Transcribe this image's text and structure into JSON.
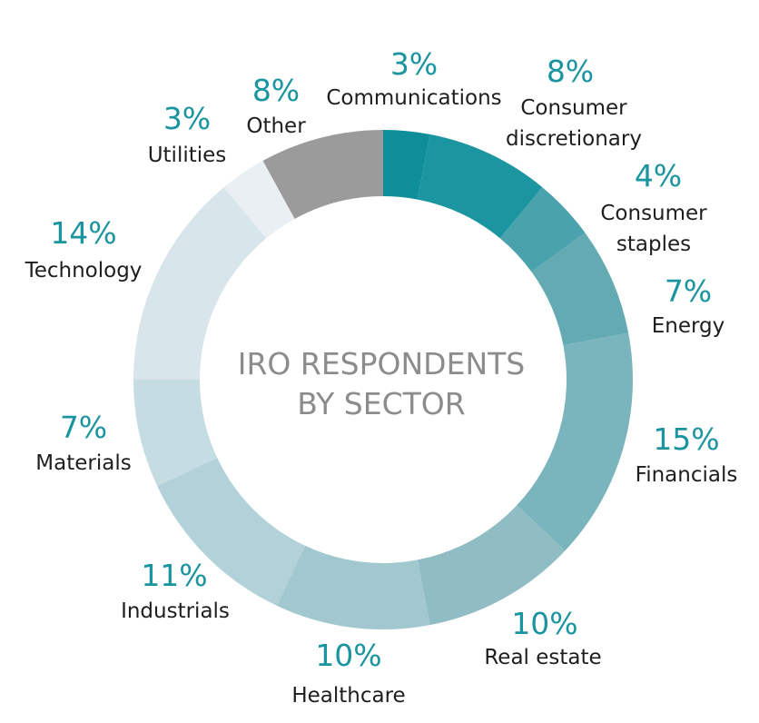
{
  "chart_data": {
    "type": "pie",
    "subtype": "donut",
    "title_lines": [
      "IRO RESPONDENTS",
      "BY SECTOR"
    ],
    "slices": [
      {
        "name": "Communications",
        "name_lines": [
          "Communications"
        ],
        "value": 3,
        "value_label": "3%",
        "color": "#0e8e99"
      },
      {
        "name": "Consumer discretionary",
        "name_lines": [
          "Consumer",
          "discretionary"
        ],
        "value": 8,
        "value_label": "8%",
        "color": "#1b96a1"
      },
      {
        "name": "Consumer staples",
        "name_lines": [
          "Consumer",
          "staples"
        ],
        "value": 4,
        "value_label": "4%",
        "color": "#4aa3ac"
      },
      {
        "name": "Energy",
        "name_lines": [
          "Energy"
        ],
        "value": 7,
        "value_label": "7%",
        "color": "#63aab3"
      },
      {
        "name": "Financials",
        "name_lines": [
          "Financials"
        ],
        "value": 15,
        "value_label": "15%",
        "color": "#7ab4bc"
      },
      {
        "name": "Real estate",
        "name_lines": [
          "Real estate"
        ],
        "value": 10,
        "value_label": "10%",
        "color": "#90bcc4"
      },
      {
        "name": "Healthcare",
        "name_lines": [
          "Healthcare"
        ],
        "value": 10,
        "value_label": "10%",
        "color": "#a2c8cf"
      },
      {
        "name": "Industrials",
        "name_lines": [
          "Industrials"
        ],
        "value": 11,
        "value_label": "11%",
        "color": "#b2d1d8"
      },
      {
        "name": "Materials",
        "name_lines": [
          "Materials"
        ],
        "value": 7,
        "value_label": "7%",
        "color": "#c4dce2"
      },
      {
        "name": "Technology",
        "name_lines": [
          "Technology"
        ],
        "value": 14,
        "value_label": "14%",
        "color": "#d8e6eb"
      },
      {
        "name": "Utilities",
        "name_lines": [
          "Utilities"
        ],
        "value": 3,
        "value_label": "3%",
        "color": "#e9eff2"
      },
      {
        "name": "Other",
        "name_lines": [
          "Other"
        ],
        "value": 8,
        "value_label": "8%",
        "color": "#9b9b9b"
      }
    ]
  }
}
